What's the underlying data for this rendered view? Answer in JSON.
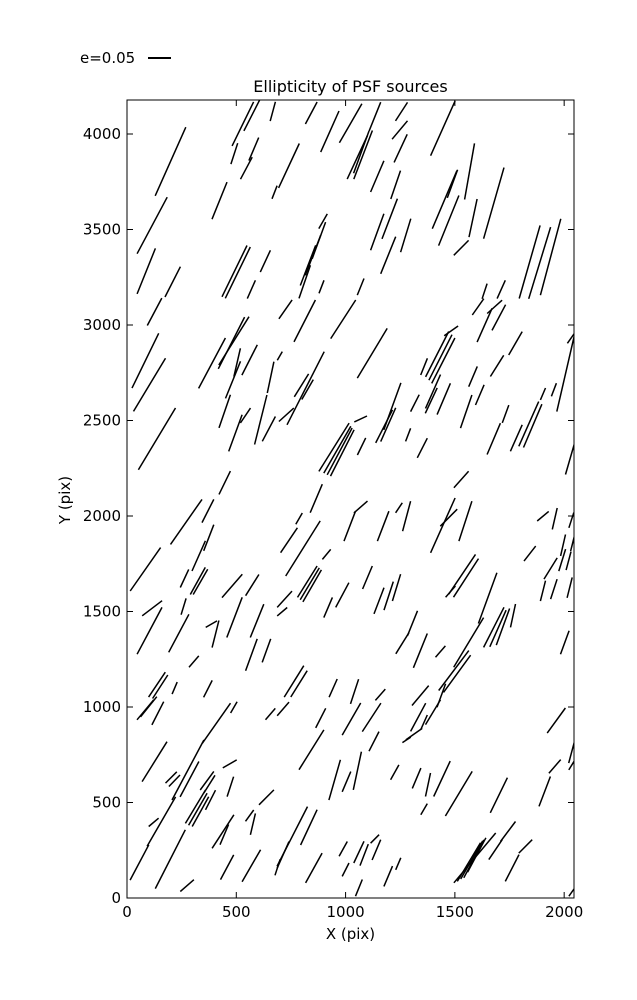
{
  "figure": {
    "title": "Ellipticity of PSF sources",
    "xlabel": "X (pix)",
    "ylabel": "Y (pix)",
    "legend_label": "e=0.05",
    "line_color": "#000000",
    "background": "#ffffff"
  },
  "chart_data": {
    "type": "scatter",
    "subtype": "whisker-vector-plot",
    "title": "Ellipticity of PSF sources",
    "xlabel": "X (pix)",
    "ylabel": "Y (pix)",
    "xlim": [
      0,
      2045
    ],
    "ylim": [
      0,
      4178
    ],
    "xticks": [
      0,
      500,
      1000,
      1500,
      2000
    ],
    "yticks": [
      0,
      500,
      1000,
      1500,
      2000,
      2500,
      3000,
      3500,
      4000
    ],
    "grid": false,
    "legend": {
      "label": "e=0.05",
      "position": "upper-left-outside"
    },
    "whisker_format": "[x_pix, y_pix, length_screen_px, angle_deg_ccw_from_x]",
    "whiskers": [
      [
        199,
        3856,
        75,
        66
      ],
      [
        115,
        3521,
        64,
        62
      ],
      [
        530,
        4053,
        49,
        64
      ],
      [
        571,
        4098,
        35,
        63
      ],
      [
        667,
        4118,
        20,
        75
      ],
      [
        491,
        3897,
        22,
        72
      ],
      [
        546,
        3821,
        25,
        62
      ],
      [
        580,
        3921,
        25,
        67
      ],
      [
        423,
        3651,
        40,
        68
      ],
      [
        675,
        3695,
        14,
        69
      ],
      [
        88,
        3282,
        49,
        68
      ],
      [
        209,
        3226,
        34,
        63
      ],
      [
        492,
        3282,
        57,
        64
      ],
      [
        507,
        3274,
        57,
        64
      ],
      [
        633,
        3334,
        24,
        65
      ],
      [
        569,
        3186,
        20,
        66
      ],
      [
        843,
        4110,
        25,
        62
      ],
      [
        741,
        3834,
        49,
        65
      ],
      [
        928,
        4013,
        45,
        66
      ],
      [
        1023,
        4056,
        45,
        60
      ],
      [
        1054,
        3878,
        48,
        65
      ],
      [
        1080,
        3891,
        52,
        69
      ],
      [
        1072,
        3905,
        45,
        70
      ],
      [
        1134,
        4091,
        31,
        68
      ],
      [
        1248,
        4021,
        24,
        50
      ],
      [
        1252,
        3925,
        31,
        65
      ],
      [
        1256,
        4117,
        22,
        57
      ],
      [
        1145,
        3778,
        34,
        67
      ],
      [
        1229,
        3734,
        30,
        71
      ],
      [
        1145,
        3487,
        39,
        70
      ],
      [
        1202,
        3556,
        43,
        69
      ],
      [
        1195,
        3365,
        40,
        68
      ],
      [
        1275,
        3469,
        35,
        73
      ],
      [
        897,
        3543,
        17,
        60
      ],
      [
        878,
        3443,
        39,
        70
      ],
      [
        851,
        3365,
        43,
        69
      ],
      [
        828,
        3312,
        43,
        69
      ],
      [
        813,
        3226,
        35,
        71
      ],
      [
        890,
        3200,
        14,
        69
      ],
      [
        1069,
        3200,
        18,
        68
      ],
      [
        1445,
        4030,
        60,
        66
      ],
      [
        1567,
        3804,
        57,
        80
      ],
      [
        1453,
        3656,
        63,
        67
      ],
      [
        1472,
        3547,
        54,
        68
      ],
      [
        1489,
        3739,
        30,
        70
      ],
      [
        1583,
        3560,
        39,
        78
      ],
      [
        1529,
        3404,
        21,
        45
      ],
      [
        1678,
        3638,
        74,
        74
      ],
      [
        1712,
        3186,
        20,
        66
      ],
      [
        1636,
        3177,
        16,
        72
      ],
      [
        1842,
        3330,
        76,
        74
      ],
      [
        1888,
        3325,
        75,
        73
      ],
      [
        1938,
        3356,
        79,
        75
      ],
      [
        126,
        3069,
        31,
        62
      ],
      [
        84,
        2813,
        61,
        64
      ],
      [
        103,
        2687,
        62,
        59
      ],
      [
        137,
        2404,
        72,
        59
      ],
      [
        389,
        2800,
        57,
        62
      ],
      [
        489,
        2917,
        57,
        58
      ],
      [
        478,
        2906,
        58,
        63
      ],
      [
        504,
        2804,
        29,
        77
      ],
      [
        561,
        2817,
        34,
        63
      ],
      [
        485,
        2713,
        40,
        68
      ],
      [
        447,
        2548,
        35,
        71
      ],
      [
        496,
        2434,
        39,
        70
      ],
      [
        542,
        2526,
        18,
        56
      ],
      [
        612,
        2504,
        51,
        76
      ],
      [
        657,
        2726,
        32,
        78
      ],
      [
        447,
        2174,
        26,
        64
      ],
      [
        649,
        2456,
        28,
        62
      ],
      [
        725,
        3082,
        23,
        55
      ],
      [
        813,
        3021,
        47,
        63
      ],
      [
        989,
        3030,
        46,
        57
      ],
      [
        699,
        2838,
        10,
        60
      ],
      [
        1122,
        2852,
        58,
        59
      ],
      [
        817,
        2669,
        82,
        63
      ],
      [
        798,
        2684,
        27,
        58
      ],
      [
        826,
        2662,
        23,
        60
      ],
      [
        729,
        2530,
        20,
        42
      ],
      [
        947,
        2360,
        57,
        58
      ],
      [
        962,
        2347,
        54,
        60
      ],
      [
        973,
        2338,
        53,
        62
      ],
      [
        985,
        2330,
        52,
        63
      ],
      [
        1069,
        2508,
        14,
        25
      ],
      [
        1073,
        2364,
        19,
        64
      ],
      [
        1176,
        2469,
        37,
        63
      ],
      [
        1195,
        2478,
        37,
        66
      ],
      [
        1214,
        2574,
        50,
        70
      ],
      [
        1359,
        2782,
        18,
        68
      ],
      [
        1317,
        2591,
        19,
        63
      ],
      [
        1286,
        2425,
        14,
        69
      ],
      [
        1351,
        2356,
        22,
        63
      ],
      [
        1606,
        3095,
        20,
        55
      ],
      [
        1636,
        2999,
        37,
        66
      ],
      [
        1682,
        3095,
        20,
        42
      ],
      [
        1701,
        3039,
        29,
        62
      ],
      [
        1419,
        2847,
        51,
        63
      ],
      [
        1434,
        2830,
        51,
        63
      ],
      [
        1447,
        2813,
        51,
        63
      ],
      [
        1483,
        2969,
        17,
        35
      ],
      [
        1400,
        2652,
        37,
        66
      ],
      [
        1392,
        2604,
        28,
        65
      ],
      [
        1449,
        2613,
        34,
        67
      ],
      [
        1552,
        2547,
        35,
        71
      ],
      [
        1583,
        2730,
        22,
        67
      ],
      [
        1614,
        2634,
        22,
        67
      ],
      [
        1693,
        2786,
        25,
        58
      ],
      [
        1777,
        2904,
        27,
        60
      ],
      [
        1678,
        2404,
        34,
        67
      ],
      [
        1732,
        2534,
        19,
        70
      ],
      [
        1781,
        2408,
        29,
        66
      ],
      [
        1838,
        2482,
        49,
        66
      ],
      [
        1856,
        2472,
        47,
        67
      ],
      [
        1903,
        2639,
        13,
        67
      ],
      [
        1953,
        2661,
        14,
        69
      ],
      [
        2033,
        2934,
        14,
        55
      ],
      [
        2006,
        2743,
        77,
        77
      ],
      [
        2029,
        2308,
        36,
        74
      ],
      [
        1529,
        2191,
        22,
        48
      ],
      [
        271,
        1969,
        55,
        55
      ],
      [
        370,
        2026,
        26,
        63
      ],
      [
        328,
        1791,
        33,
        66
      ],
      [
        374,
        1886,
        28,
        69
      ],
      [
        84,
        1721,
        53,
        55
      ],
      [
        115,
        1517,
        25,
        37
      ],
      [
        263,
        1673,
        20,
        65
      ],
      [
        259,
        1526,
        17,
        73
      ],
      [
        324,
        1660,
        31,
        61
      ],
      [
        336,
        1655,
        29,
        60
      ],
      [
        103,
        1399,
        53,
        62
      ],
      [
        237,
        1386,
        43,
        62
      ],
      [
        386,
        1434,
        13,
        30
      ],
      [
        405,
        1382,
        28,
        76
      ],
      [
        306,
        1238,
        15,
        49
      ],
      [
        481,
        1634,
        31,
        49
      ],
      [
        492,
        1469,
        43,
        69
      ],
      [
        573,
        1638,
        25,
        58
      ],
      [
        595,
        1451,
        36,
        68
      ],
      [
        569,
        1273,
        34,
        70
      ],
      [
        638,
        1295,
        25,
        70
      ],
      [
        137,
        1117,
        30,
        56
      ],
      [
        152,
        1106,
        28,
        57
      ],
      [
        218,
        1099,
        13,
        67
      ],
      [
        370,
        1095,
        19,
        63
      ],
      [
        866,
        2092,
        31,
        67
      ],
      [
        787,
        1986,
        13,
        60
      ],
      [
        741,
        1873,
        30,
        56
      ],
      [
        721,
        1564,
        22,
        48
      ],
      [
        710,
        1499,
        13,
        40
      ],
      [
        805,
        1830,
        65,
        58
      ],
      [
        825,
        1656,
        37,
        58
      ],
      [
        836,
        1645,
        37,
        59
      ],
      [
        847,
        1634,
        37,
        60
      ],
      [
        913,
        1799,
        13,
        50
      ],
      [
        920,
        1521,
        22,
        67
      ],
      [
        1019,
        1947,
        32,
        69
      ],
      [
        1069,
        2047,
        18,
        41
      ],
      [
        985,
        1586,
        28,
        62
      ],
      [
        1100,
        1678,
        25,
        67
      ],
      [
        1153,
        1556,
        28,
        69
      ],
      [
        1172,
        1947,
        32,
        69
      ],
      [
        1233,
        1625,
        28,
        73
      ],
      [
        1279,
        1999,
        31,
        75
      ],
      [
        1244,
        2043,
        12,
        56
      ],
      [
        1306,
        1438,
        27,
        68
      ],
      [
        1260,
        1334,
        25,
        58
      ],
      [
        764,
        1134,
        37,
        58
      ],
      [
        787,
        1121,
        31,
        58
      ],
      [
        943,
        1099,
        20,
        66
      ],
      [
        1445,
        1951,
        60,
        66
      ],
      [
        1472,
        1991,
        24,
        45
      ],
      [
        1548,
        1973,
        42,
        72
      ],
      [
        1533,
        1695,
        48,
        56
      ],
      [
        1551,
        1676,
        46,
        57
      ],
      [
        1480,
        1604,
        15,
        49
      ],
      [
        1650,
        1570,
        54,
        70
      ],
      [
        1678,
        1417,
        45,
        63
      ],
      [
        1697,
        1411,
        40,
        66
      ],
      [
        1720,
        1420,
        39,
        70
      ],
      [
        1766,
        1478,
        24,
        78
      ],
      [
        1843,
        1803,
        19,
        52
      ],
      [
        1903,
        1999,
        15,
        40
      ],
      [
        1957,
        1986,
        22,
        77
      ],
      [
        1938,
        1725,
        25,
        58
      ],
      [
        1903,
        1608,
        21,
        76
      ],
      [
        1953,
        1617,
        21,
        72
      ],
      [
        1991,
        1769,
        23,
        73
      ],
      [
        1995,
        1847,
        22,
        77
      ],
      [
        2020,
        1765,
        19,
        75
      ],
      [
        2033,
        1978,
        16,
        72
      ],
      [
        2041,
        1869,
        21,
        76
      ],
      [
        2025,
        1625,
        21,
        76
      ],
      [
        2003,
        1338,
        25,
        70
      ],
      [
        1495,
        1191,
        50,
        53
      ],
      [
        1510,
        1174,
        46,
        54
      ],
      [
        1563,
        1338,
        58,
        59
      ],
      [
        1197,
        1582,
        30,
        72
      ],
      [
        1342,
        1295,
        37,
        68
      ],
      [
        1434,
        1290,
        15,
        49
      ],
      [
        1041,
        1081,
        26,
        72
      ],
      [
        1159,
        1064,
        15,
        49
      ],
      [
        1342,
        1060,
        26,
        50
      ],
      [
        1438,
        1060,
        25,
        70
      ],
      [
        84,
        985,
        26,
        50
      ],
      [
        99,
        1001,
        26,
        51
      ],
      [
        141,
        967,
        26,
        63
      ],
      [
        126,
        714,
        47,
        58
      ],
      [
        122,
        396,
        13,
        40
      ],
      [
        157,
        400,
        57,
        60
      ],
      [
        57,
        186,
        40,
        62
      ],
      [
        198,
        203,
        66,
        63
      ],
      [
        202,
        631,
        16,
        45
      ],
      [
        217,
        614,
        16,
        46
      ],
      [
        279,
        670,
        68,
        62
      ],
      [
        286,
        622,
        40,
        62
      ],
      [
        366,
        614,
        23,
        54
      ],
      [
        377,
        596,
        21,
        58
      ],
      [
        313,
        478,
        39,
        59
      ],
      [
        324,
        465,
        37,
        60
      ],
      [
        336,
        452,
        34,
        61
      ],
      [
        382,
        513,
        22,
        63
      ],
      [
        439,
        348,
        40,
        57
      ],
      [
        470,
        702,
        16,
        30
      ],
      [
        409,
        915,
        49,
        55
      ],
      [
        489,
        998,
        13,
        60
      ],
      [
        473,
        583,
        21,
        72
      ],
      [
        445,
        332,
        22,
        67
      ],
      [
        458,
        161,
        28,
        62
      ],
      [
        275,
        65,
        18,
        41
      ],
      [
        569,
        169,
        37,
        60
      ],
      [
        561,
        431,
        14,
        54
      ],
      [
        576,
        387,
        22,
        77
      ],
      [
        638,
        527,
        21,
        45
      ],
      [
        656,
        963,
        15,
        49
      ],
      [
        689,
        161,
        17,
        72
      ],
      [
        714,
        990,
        18,
        49
      ],
      [
        844,
        776,
        47,
        58
      ],
      [
        886,
        942,
        22,
        63
      ],
      [
        1027,
        937,
        37,
        60
      ],
      [
        1119,
        946,
        34,
        57
      ],
      [
        1130,
        820,
        22,
        63
      ],
      [
        1332,
        946,
        32,
        62
      ],
      [
        1279,
        828,
        10,
        33
      ],
      [
        1313,
        858,
        20,
        35
      ],
      [
        1359,
        920,
        16,
        66
      ],
      [
        1225,
        658,
        17,
        61
      ],
      [
        1325,
        627,
        22,
        67
      ],
      [
        950,
        618,
        42,
        74
      ],
      [
        1004,
        609,
        22,
        67
      ],
      [
        1054,
        666,
        39,
        78
      ],
      [
        756,
        322,
        67,
        63
      ],
      [
        714,
        226,
        29,
        66
      ],
      [
        832,
        370,
        39,
        65
      ],
      [
        855,
        157,
        34,
        61
      ],
      [
        989,
        257,
        17,
        61
      ],
      [
        1000,
        148,
        15,
        63
      ],
      [
        1061,
        240,
        24,
        65
      ],
      [
        1085,
        226,
        23,
        69
      ],
      [
        1061,
        53,
        18,
        68
      ],
      [
        1134,
        309,
        12,
        45
      ],
      [
        1141,
        252,
        22,
        67
      ],
      [
        1195,
        114,
        22,
        67
      ],
      [
        1241,
        179,
        13,
        67
      ],
      [
        1359,
        465,
        13,
        60
      ],
      [
        1400,
        973,
        29,
        59
      ],
      [
        1441,
        624,
        39,
        65
      ],
      [
        1377,
        593,
        24,
        78
      ],
      [
        1518,
        546,
        52,
        59
      ],
      [
        1701,
        538,
        39,
        64
      ],
      [
        1911,
        558,
        32,
        69
      ],
      [
        1964,
        929,
        31,
        54
      ],
      [
        1957,
        689,
        18,
        49
      ],
      [
        2033,
        693,
        10,
        59
      ],
      [
        2035,
        767,
        24,
        75
      ],
      [
        1591,
        210,
        65,
        50
      ],
      [
        1564,
        188,
        45,
        59
      ],
      [
        1577,
        199,
        44,
        60
      ],
      [
        1587,
        205,
        43,
        62
      ],
      [
        1600,
        225,
        39,
        62
      ],
      [
        1686,
        253,
        24,
        56
      ],
      [
        1743,
        348,
        25,
        53
      ],
      [
        1762,
        157,
        30,
        63
      ],
      [
        1823,
        270,
        19,
        45
      ],
      [
        2035,
        31,
        10,
        55
      ]
    ]
  }
}
